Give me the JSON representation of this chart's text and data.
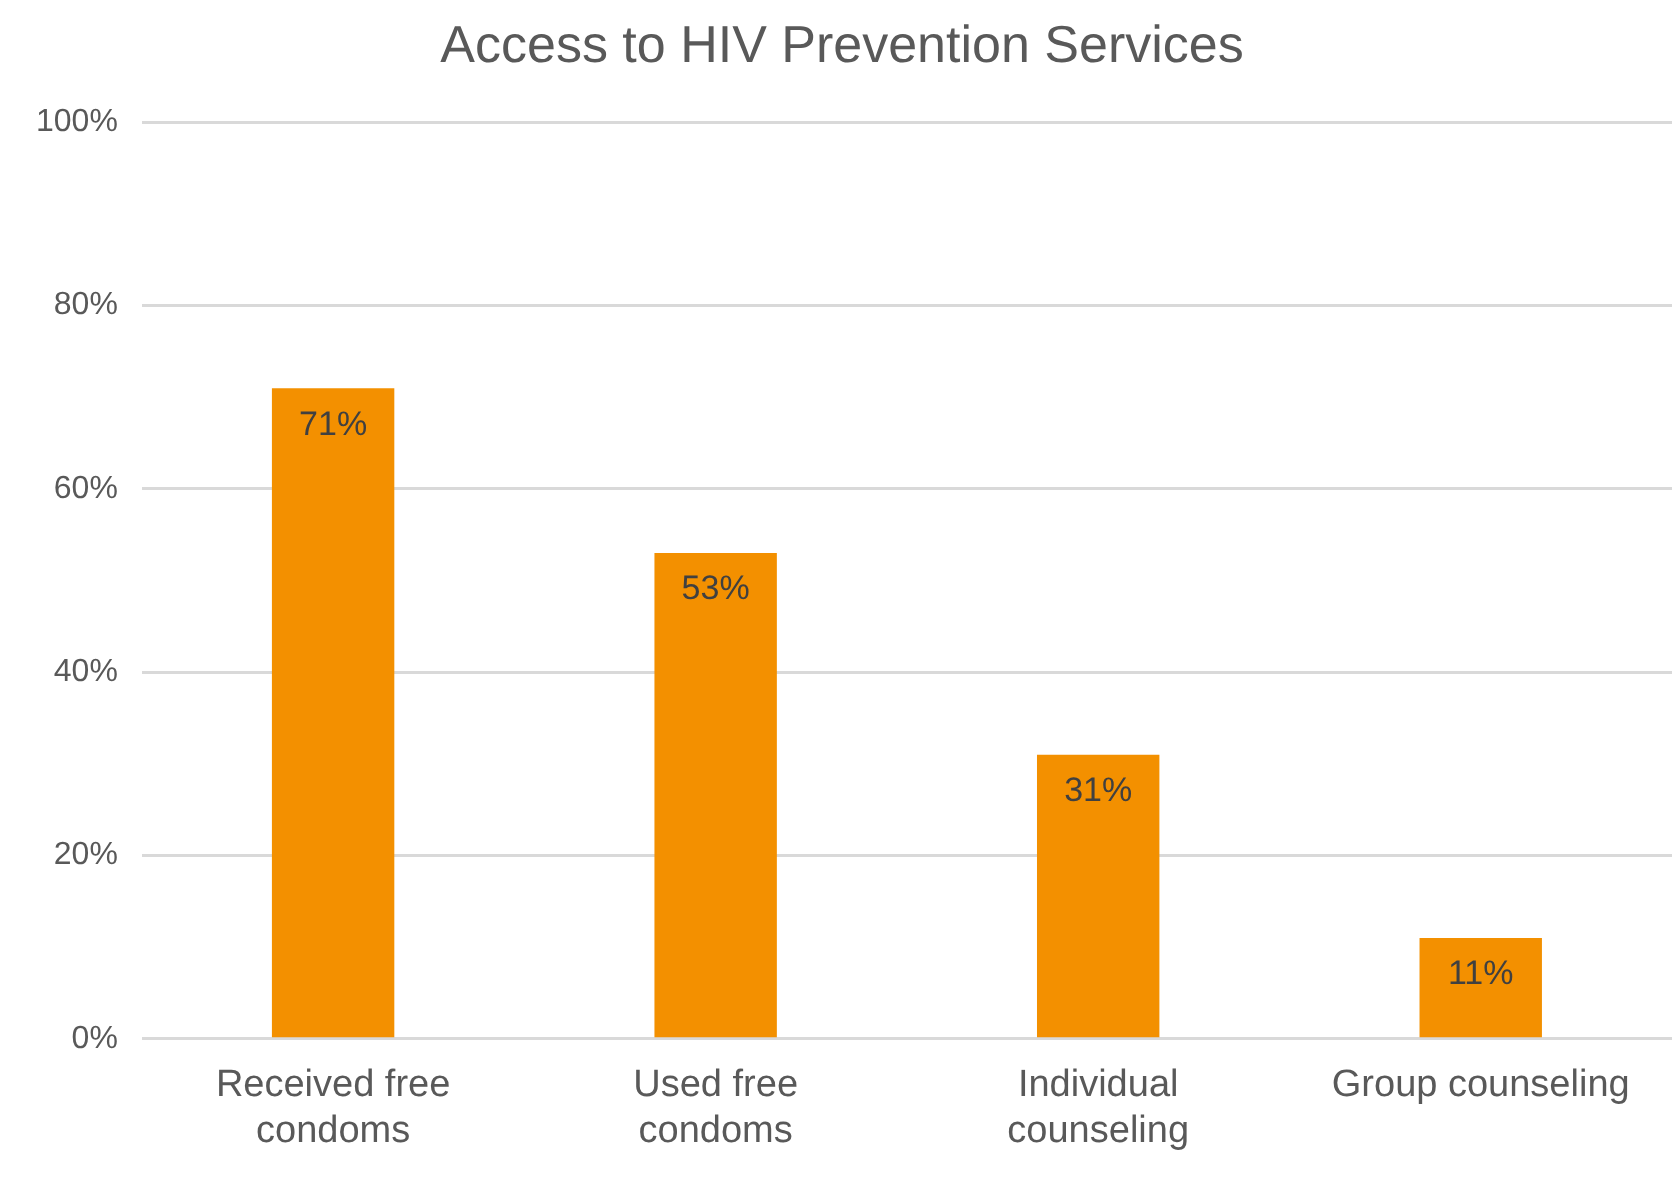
{
  "chart_data": {
    "type": "bar",
    "title": "Access to HIV Prevention Services",
    "categories": [
      "Received free condoms",
      "Used free condoms",
      "Individual counseling",
      "Group counseling"
    ],
    "values": [
      71,
      53,
      31,
      11
    ],
    "value_labels": [
      "71%",
      "53%",
      "31%",
      "11%"
    ],
    "color": "#f39000",
    "ylim": [
      0,
      100
    ],
    "yticks": [
      {
        "value": 0,
        "label": "0%"
      },
      {
        "value": 20,
        "label": "20%"
      },
      {
        "value": 40,
        "label": "40%"
      },
      {
        "value": 60,
        "label": "60%"
      },
      {
        "value": 80,
        "label": "80%"
      },
      {
        "value": 100,
        "label": "100%"
      }
    ],
    "grid": "y"
  }
}
